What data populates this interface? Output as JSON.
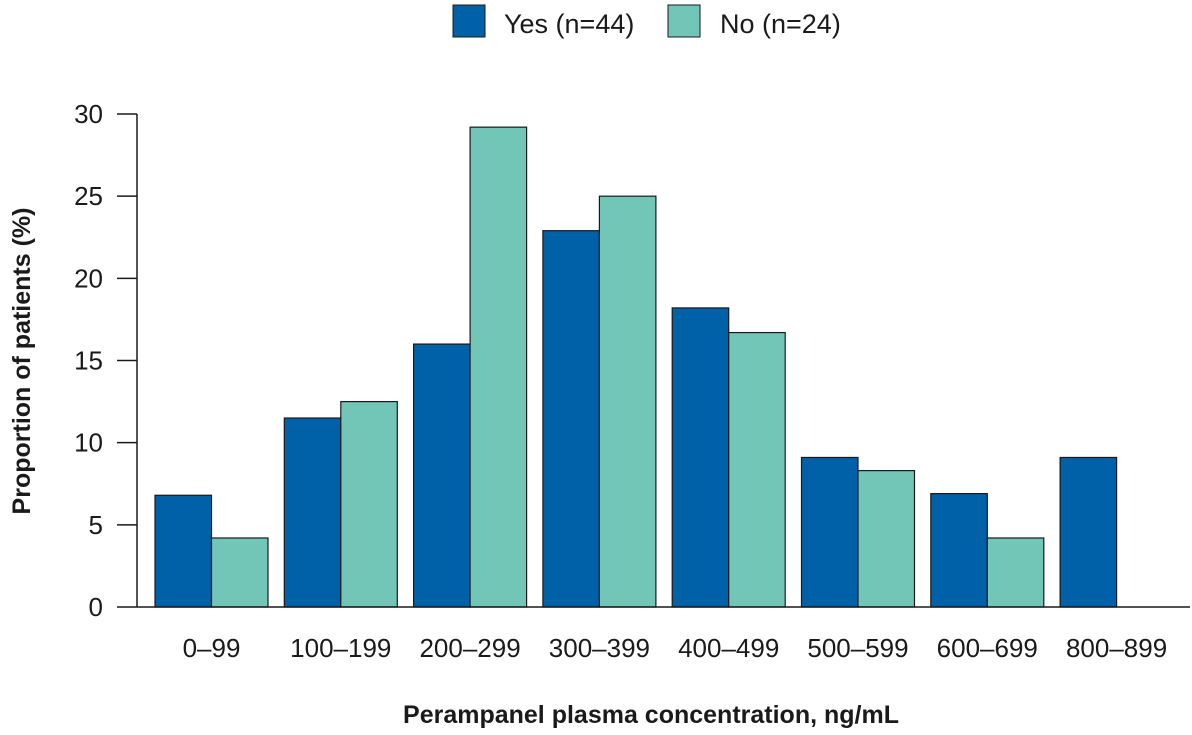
{
  "chart_data": {
    "type": "bar",
    "title": "",
    "xlabel": "Perampanel plasma concentration, ng/mL",
    "ylabel": "Proportion of patients (%)",
    "ylim": [
      0,
      30
    ],
    "yticks": [
      0,
      5,
      10,
      15,
      20,
      25,
      30
    ],
    "categories": [
      "0–99",
      "100–199",
      "200–299",
      "300–399",
      "400–499",
      "500–599",
      "600–699",
      "800–899"
    ],
    "series": [
      {
        "name": "Yes (n=44)",
        "color": "#0060a8",
        "values": [
          6.8,
          11.5,
          16.0,
          22.9,
          18.2,
          9.1,
          6.9,
          9.1
        ]
      },
      {
        "name": "No (n=24)",
        "color": "#72c6b8",
        "values": [
          4.2,
          12.5,
          29.2,
          25.0,
          16.7,
          8.3,
          4.2,
          0
        ]
      }
    ],
    "legend_position": "top-center",
    "grid": false
  }
}
